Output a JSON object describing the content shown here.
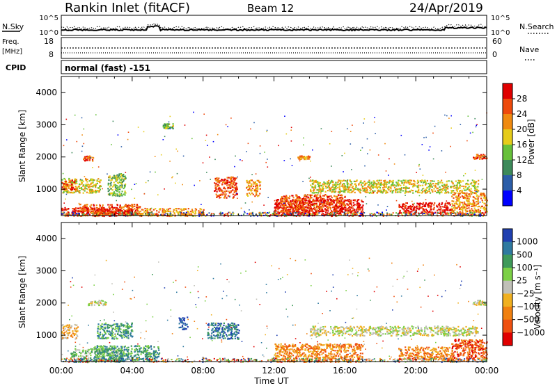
{
  "header": {
    "station": "Rankin Inlet (fitACF)",
    "beam": "Beam 12",
    "date": "24/Apr/2019"
  },
  "noise_panel": {
    "left_label": "N.Sky",
    "right_label": "N.Search",
    "left_ticks": [
      "10^5",
      "10^0"
    ],
    "right_ticks": [
      "10^5",
      "10^0"
    ]
  },
  "freq_panel": {
    "left_label_line1": "Freq.",
    "left_label_line2": "[MHz]",
    "left_ticks": [
      "18",
      "8"
    ],
    "right_ticks": [
      "60",
      "0"
    ],
    "right_label": "Nave"
  },
  "cpid_panel": {
    "label": "CPID",
    "text": "normal (fast) -151"
  },
  "chart_data": [
    {
      "type": "heatmap",
      "title": "Power",
      "ylabel": "Slant Range [km]",
      "ylim": [
        180,
        4500
      ],
      "y_ticks": [
        1000,
        2000,
        3000,
        4000
      ],
      "x_ticks": [
        "00:00",
        "04:00",
        "08:00",
        "12:00",
        "16:00",
        "20:00",
        "00:00"
      ],
      "xlim_hours": [
        0,
        24
      ],
      "colorbar": {
        "label": "Power [dB]",
        "tick_labels": [
          "4",
          "8",
          "12",
          "16",
          "20",
          "24",
          "28"
        ],
        "colors": [
          "#0000ff",
          "#2b5da8",
          "#3d8a5a",
          "#67c13a",
          "#e6cc1a",
          "#f08a10",
          "#ee4a0c",
          "#e00000"
        ]
      },
      "regions": [
        {
          "t0": 0.0,
          "t1": 3.0,
          "r0": 180,
          "r1": 450,
          "c": 7
        },
        {
          "t0": 1.0,
          "t1": 4.5,
          "r0": 180,
          "r1": 550,
          "c": 6
        },
        {
          "t0": 4.3,
          "t1": 8.0,
          "r0": 180,
          "r1": 420,
          "c": 5
        },
        {
          "t0": 2.0,
          "t1": 4.2,
          "r0": 220,
          "r1": 400,
          "c": 7
        },
        {
          "t0": 0.0,
          "t1": 2.2,
          "r0": 900,
          "r1": 1350,
          "c": 4
        },
        {
          "t0": 0.0,
          "t1": 0.8,
          "r0": 1000,
          "r1": 1300,
          "c": 6
        },
        {
          "t0": 2.6,
          "t1": 3.6,
          "r0": 800,
          "r1": 1500,
          "c": 3
        },
        {
          "t0": 1.2,
          "t1": 1.8,
          "r0": 1900,
          "r1": 2050,
          "c": 6
        },
        {
          "t0": 8.6,
          "t1": 9.9,
          "r0": 750,
          "r1": 1400,
          "c": 6
        },
        {
          "t0": 10.4,
          "t1": 11.2,
          "r0": 800,
          "r1": 1300,
          "c": 5
        },
        {
          "t0": 12.0,
          "t1": 17.0,
          "r0": 180,
          "r1": 700,
          "c": 7
        },
        {
          "t0": 12.3,
          "t1": 16.0,
          "r0": 300,
          "r1": 850,
          "c": 6
        },
        {
          "t0": 14.0,
          "t1": 23.5,
          "r0": 900,
          "r1": 1300,
          "c": 4
        },
        {
          "t0": 19.0,
          "t1": 22.0,
          "r0": 250,
          "r1": 600,
          "c": 7
        },
        {
          "t0": 22.0,
          "t1": 24.0,
          "r0": 200,
          "r1": 900,
          "c": 5
        },
        {
          "t0": 13.3,
          "t1": 14.0,
          "r0": 1950,
          "r1": 2050,
          "c": 5
        },
        {
          "t0": 23.2,
          "t1": 24.0,
          "r0": 1950,
          "r1": 2100,
          "c": 6
        },
        {
          "t0": 5.7,
          "t1": 6.3,
          "r0": 2900,
          "r1": 3050,
          "c": 3
        }
      ]
    },
    {
      "type": "heatmap",
      "title": "Velocity",
      "ylabel": "Slant Range [km]",
      "xlabel": "Time UT",
      "ylim": [
        180,
        4500
      ],
      "y_ticks": [
        1000,
        2000,
        3000,
        4000
      ],
      "x_ticks": [
        "00:00",
        "04:00",
        "08:00",
        "12:00",
        "16:00",
        "20:00",
        "00:00"
      ],
      "xlim_hours": [
        0,
        24
      ],
      "colorbar": {
        "label": "Velocity [m s⁻¹]",
        "tick_labels": [
          "1000",
          "500",
          "100",
          "25",
          "−25",
          "−100",
          "−500",
          "−1000"
        ],
        "colors": [
          "#2040b0",
          "#2f7aa0",
          "#3f9a5a",
          "#7cd046",
          "#c0c0b8",
          "#f0b020",
          "#f08010",
          "#ef5010",
          "#e00000"
        ]
      },
      "regions": [
        {
          "t0": 0.0,
          "t1": 0.9,
          "r0": 900,
          "r1": 1350,
          "c": 5
        },
        {
          "t0": 0.5,
          "t1": 3.5,
          "r0": 180,
          "r1": 600,
          "c": 3
        },
        {
          "t0": 1.8,
          "t1": 5.5,
          "r0": 200,
          "r1": 700,
          "c": 2
        },
        {
          "t0": 8.2,
          "t1": 10.0,
          "r0": 900,
          "r1": 1400,
          "c": 1
        },
        {
          "t0": 6.6,
          "t1": 7.1,
          "r0": 1200,
          "r1": 1600,
          "c": 0
        },
        {
          "t0": 12.0,
          "t1": 17.0,
          "r0": 180,
          "r1": 750,
          "c": 6
        },
        {
          "t0": 14.0,
          "t1": 23.5,
          "r0": 1000,
          "r1": 1300,
          "c": 4
        },
        {
          "t0": 19.0,
          "t1": 22.0,
          "r0": 250,
          "r1": 650,
          "c": 6
        },
        {
          "t0": 22.0,
          "t1": 24.0,
          "r0": 200,
          "r1": 900,
          "c": 7
        },
        {
          "t0": 23.2,
          "t1": 24.0,
          "r0": 1950,
          "r1": 2100,
          "c": 4
        },
        {
          "t0": 1.5,
          "t1": 2.5,
          "r0": 1950,
          "r1": 2100,
          "c": 4
        },
        {
          "t0": 2.0,
          "t1": 4.0,
          "r0": 900,
          "r1": 1400,
          "c": 2
        }
      ]
    }
  ]
}
